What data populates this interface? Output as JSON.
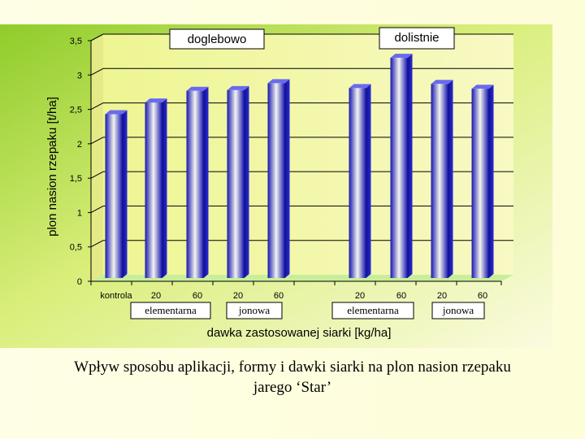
{
  "chart_data": {
    "type": "bar",
    "ylabel": "plon nasion rzepaku [t/ha]",
    "xlabel": "dawka zastosowanej siarki [kg/ha]",
    "ylim": [
      0,
      3.5
    ],
    "yticks": [
      "0",
      "0,5",
      "1",
      "1,5",
      "2",
      "2,5",
      "3",
      "3,5"
    ],
    "categories": [
      "kontrola",
      "20",
      "60",
      "20",
      "60",
      "20",
      "60",
      "20",
      "60"
    ],
    "values": [
      2.43,
      2.6,
      2.77,
      2.78,
      2.88,
      2.81,
      3.25,
      2.87,
      2.8
    ],
    "grid": true,
    "group_labels": [
      "doglebowo",
      "dolistnie"
    ],
    "form_labels": [
      "elementarna",
      "jonowa",
      "elementarna",
      "jonowa"
    ],
    "colors": {
      "bar": "#2a2ad8",
      "plot_bg": "#f2f5a0",
      "frame_bg": "#9fd23a"
    }
  },
  "caption": {
    "line1": "Wpływ sposobu aplikacji, formy i dawki siarki na plon nasion rzepaku",
    "line2": "jarego ‘Star’"
  }
}
